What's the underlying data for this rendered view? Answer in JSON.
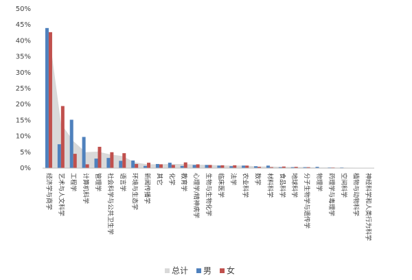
{
  "chart_data": {
    "type": "bar",
    "categories": [
      "经济学与商学",
      "艺术与人文科学",
      "工程学",
      "计算机科学",
      "管理学",
      "社会科学与公共卫生学",
      "语言学",
      "环境与生态学",
      "新闻传播学",
      "其它",
      "化学",
      "教育学",
      "心理学/精神病学",
      "生物与生物化学",
      "临床医学",
      "法学",
      "农业科学",
      "数学",
      "材料科学",
      "食品科学",
      "地球科学",
      "分子生物学与遗传学",
      "物理学",
      "药理学与毒理学",
      "空间科学",
      "植物与动物科学",
      "神经科学和人类行为科学"
    ],
    "series": [
      {
        "name": "总计",
        "type": "area",
        "color": "#d9d9d9",
        "values": [
          43.2,
          14,
          8.5,
          5,
          5.2,
          4.3,
          3.8,
          1.8,
          1.2,
          1.2,
          1.3,
          1.3,
          1.1,
          1,
          0.85,
          0.8,
          0.8,
          0.5,
          0.5,
          0.4,
          0.35,
          0.3,
          0.2,
          0.2,
          0.15,
          0.1,
          0.1
        ]
      },
      {
        "name": "男",
        "color": "#4f81bd",
        "values": [
          44,
          7.5,
          15.2,
          9.8,
          3,
          3.2,
          2.3,
          2.4,
          0.7,
          1.3,
          1.7,
          0.7,
          1,
          1,
          0.8,
          0.6,
          0.8,
          0.6,
          0.8,
          0.3,
          0.3,
          0.3,
          0.4,
          0.2,
          0.2,
          0.1,
          0.1
        ]
      },
      {
        "name": "女",
        "color": "#c0504d",
        "values": [
          42.7,
          19.5,
          4.5,
          1.2,
          6.7,
          5,
          4.7,
          1.3,
          1.7,
          1.2,
          1,
          1.8,
          1.2,
          1,
          0.9,
          0.9,
          0.8,
          0.4,
          0.3,
          0.5,
          0.4,
          0.3,
          0.1,
          0.2,
          0.1,
          0.1,
          0.1
        ]
      }
    ],
    "ylim": [
      0,
      50
    ],
    "yticks": [
      {
        "value": 0,
        "label": "0%"
      },
      {
        "value": 5,
        "label": "5%"
      },
      {
        "value": 10,
        "label": "10%"
      },
      {
        "value": 15,
        "label": "15%"
      },
      {
        "value": 20,
        "label": "20%"
      },
      {
        "value": 25,
        "label": "25%"
      },
      {
        "value": 30,
        "label": "30%"
      },
      {
        "value": 35,
        "label": "35%"
      },
      {
        "value": 40,
        "label": "40%"
      },
      {
        "value": 45,
        "label": "45%"
      },
      {
        "value": 50,
        "label": "50%"
      }
    ],
    "grid": false,
    "legend": "bottom"
  }
}
